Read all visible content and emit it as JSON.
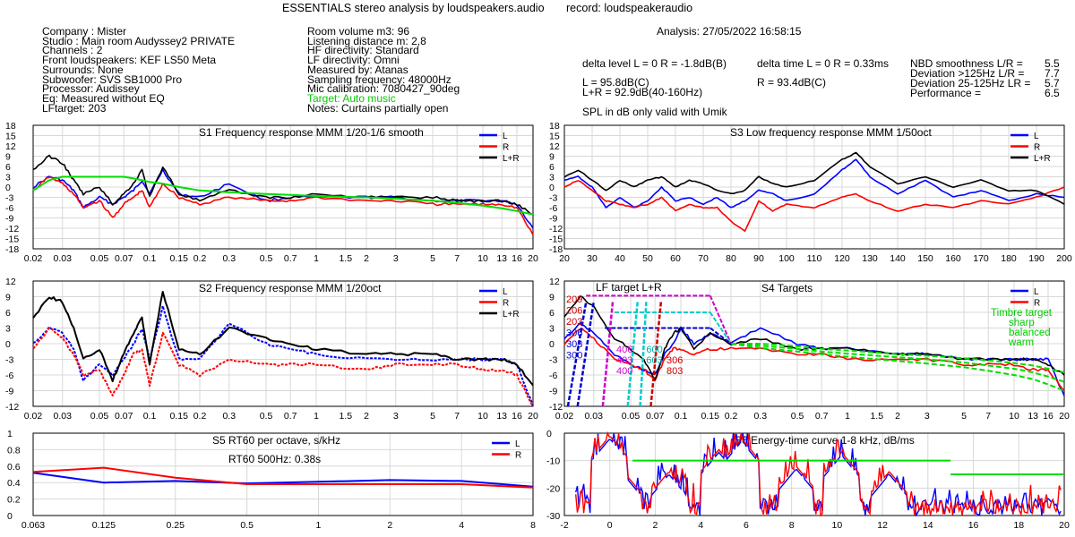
{
  "header": {
    "title": "ESSENTIALS stereo analysis by loudspeakers.audio",
    "record": "record: loudspeakeraudio",
    "analysis": "Analysis: 27/05/2022 16:58:15"
  },
  "info_left": [
    "Company : Mister",
    "Studio : Main room Audyssey2 PRIVATE",
    "Channels : 2",
    "Front loudspeakers: KEF LS50 Meta",
    "Surrounds: None",
    "Subwoofer: SVS SB1000 Pro",
    "Processor: Audissey",
    "Eq: Measured without EQ",
    "LFtarget: 203"
  ],
  "info_mid": [
    "Room volume m3: 96",
    "Listening distance m: 2,8",
    "HF directivity: Standard",
    "LF directivity: Omni",
    "Measured by: Atanas",
    "Sampling frequency: 48000Hz",
    "Mic calibration: 7080427_90deg",
    "Target: Auto music",
    "Notes: Curtains partially open"
  ],
  "stats": {
    "delta_level": "delta level L = 0  R = -1.8dB(B)",
    "delta_time": "delta time  L = 0  R = 0.33ms",
    "spl_l": "L =     95.8dB(C)",
    "spl_lr": "L+R = 92.9dB(40-160Hz)",
    "spl_r": "R =     93.4dB(C)",
    "spl_note": "SPL in dB only valid with Umik",
    "nbd_label": "NBD smoothness L/R =",
    "nbd_value": "5.5",
    "dev125_label": "Deviation >125Hz L/R =",
    "dev125_value": "7.7",
    "dev25_label": "Deviation 25-125Hz LR =",
    "dev25_value": "5.7",
    "perf_label": "Performance =",
    "perf_value": "6.5"
  },
  "colors": {
    "L": "#0000ff",
    "R": "#ff0000",
    "LR": "#000000",
    "target": "#00dd00"
  },
  "chart_data": [
    {
      "id": "S1",
      "type": "line",
      "title": "S1  Frequency response MMM 1/20-1/6 smooth",
      "x_scale": "log",
      "xlim": [
        0.02,
        20
      ],
      "ylim": [
        -18,
        18
      ],
      "grid": true,
      "xticks": [
        "0.02",
        "0.03",
        "0.05",
        "0.07",
        "0.1",
        "0.15",
        "0.2",
        "0.3",
        "0.5",
        "0.7",
        "1",
        "1.5",
        "2",
        "3",
        "5",
        "7",
        "10",
        "13",
        "16",
        "20"
      ],
      "yticks": [
        "18",
        "15",
        "12",
        "9",
        "6",
        "3",
        "0",
        "-3",
        "-6",
        "-9",
        "-12",
        "-15",
        "-18"
      ],
      "legend": [
        "L",
        "R",
        "L+R"
      ],
      "legend_position": "top-right",
      "x": [
        0.02,
        0.025,
        0.03,
        0.035,
        0.04,
        0.05,
        0.06,
        0.07,
        0.08,
        0.09,
        0.1,
        0.12,
        0.15,
        0.2,
        0.3,
        0.5,
        0.7,
        1,
        2,
        3,
        5,
        7,
        10,
        13,
        16,
        20
      ],
      "series": [
        {
          "name": "L",
          "values": [
            0,
            3,
            2,
            -1,
            -6,
            -3,
            -5,
            -3,
            -1,
            2,
            -2,
            5,
            -2,
            -3,
            1,
            -4,
            -3,
            -3,
            -3,
            -3,
            -4,
            -4,
            -4,
            -4,
            -5,
            -12
          ]
        },
        {
          "name": "R",
          "values": [
            -1,
            3,
            1,
            -2,
            -6,
            -4,
            -9,
            -5,
            -3,
            -1,
            -6,
            1,
            -3,
            -5,
            -3,
            -4,
            -4,
            -3,
            -4,
            -4,
            -5,
            -5,
            -5,
            -5,
            -6,
            -14
          ]
        },
        {
          "name": "L+R",
          "values": [
            5,
            9,
            7,
            2,
            -2,
            0,
            -5,
            -2,
            1,
            5,
            -3,
            6,
            -2,
            -4,
            -1,
            -3,
            -3,
            -2,
            -3,
            -3,
            -3,
            -4,
            -4,
            -4,
            -5,
            -8
          ]
        },
        {
          "name": "target",
          "values": [
            -1,
            2,
            3,
            3,
            3,
            3,
            3,
            3,
            2.5,
            2,
            1.5,
            1,
            0,
            -1,
            -1.5,
            -2,
            -2.3,
            -2.6,
            -3,
            -3.4,
            -4,
            -4.6,
            -5.4,
            -6.2,
            -7,
            -8
          ]
        }
      ]
    },
    {
      "id": "S2",
      "type": "line",
      "title": "S2  Frequency response MMM 1/20oct",
      "x_scale": "log",
      "xlim": [
        0.02,
        20
      ],
      "ylim": [
        -12,
        12
      ],
      "grid": true,
      "xticks": [
        "0.02",
        "0.03",
        "0.05",
        "0.07",
        "0.1",
        "0.15",
        "0.2",
        "0.3",
        "0.5",
        "0.7",
        "1",
        "1.5",
        "2",
        "3",
        "5",
        "7",
        "10",
        "13",
        "16",
        "20"
      ],
      "yticks": [
        "12",
        "9",
        "6",
        "3",
        "0",
        "-3",
        "-6",
        "-9",
        "-12"
      ],
      "legend": [
        "L",
        "R",
        "L+R"
      ],
      "legend_position": "top-right",
      "x": [
        0.02,
        0.025,
        0.03,
        0.035,
        0.04,
        0.05,
        0.06,
        0.07,
        0.08,
        0.09,
        0.1,
        0.12,
        0.15,
        0.2,
        0.3,
        0.5,
        0.7,
        1,
        2,
        3,
        5,
        7,
        10,
        13,
        16,
        20
      ],
      "series": [
        {
          "name": "L",
          "values": [
            0,
            3,
            2,
            -1,
            -7,
            -4,
            -6,
            -3,
            0,
            3,
            -3,
            7,
            -3,
            -3,
            4,
            0,
            -1,
            -2,
            -3,
            -3,
            -3,
            -3,
            -3,
            -3,
            -4,
            -12
          ]
        },
        {
          "name": "R",
          "values": [
            -1,
            3,
            1,
            -2,
            -6,
            -5,
            -10,
            -6,
            -2,
            -1,
            -8,
            2,
            -4,
            -6,
            -3,
            -4,
            -4,
            -4,
            -5,
            -4,
            -4,
            -4,
            -5,
            -5,
            -6,
            -12
          ]
        },
        {
          "name": "L+R",
          "values": [
            5,
            9,
            8,
            3,
            -3,
            -1,
            -7,
            -2,
            2,
            5,
            -4,
            10,
            -1,
            -2,
            3,
            1,
            0,
            -1,
            -2,
            -2,
            -2,
            -3,
            -3,
            -3,
            -4,
            -8
          ]
        }
      ]
    },
    {
      "id": "S3",
      "type": "line",
      "title": "S3  Low frequency response MMM 1/50oct",
      "xlim": [
        20,
        200
      ],
      "ylim": [
        -18,
        18
      ],
      "grid": true,
      "xticks": [
        "20",
        "30",
        "40",
        "50",
        "60",
        "70",
        "80",
        "90",
        "100",
        "110",
        "120",
        "130",
        "140",
        "150",
        "160",
        "170",
        "180",
        "190",
        "200"
      ],
      "yticks": [
        "18",
        "15",
        "12",
        "9",
        "6",
        "3",
        "0",
        "-3",
        "-6",
        "-9",
        "-12",
        "-15",
        "-18"
      ],
      "legend": [
        "L",
        "R",
        "L+R"
      ],
      "legend_position": "top-right",
      "x": [
        20,
        25,
        30,
        35,
        40,
        45,
        50,
        55,
        60,
        65,
        70,
        75,
        80,
        85,
        90,
        95,
        100,
        110,
        120,
        125,
        130,
        140,
        150,
        160,
        170,
        180,
        190,
        200
      ],
      "series": [
        {
          "name": "L",
          "values": [
            2,
            3,
            0,
            -6,
            -3,
            -6,
            -4,
            0,
            -4,
            -3,
            -5,
            -3,
            -6,
            -4,
            -1,
            -2,
            -4,
            -2,
            5,
            8,
            3,
            -2,
            2,
            -3,
            -1,
            -4,
            -2,
            -3
          ]
        },
        {
          "name": "R",
          "values": [
            0,
            2,
            -1,
            -4,
            -5,
            -6,
            -5,
            -3,
            -7,
            -5,
            -6,
            -6,
            -10,
            -13,
            -4,
            -7,
            -5,
            -6,
            -3,
            -2,
            -4,
            -7,
            -5,
            -6,
            -4,
            -5,
            -3,
            0
          ]
        },
        {
          "name": "L+R",
          "values": [
            3,
            5,
            2,
            -1,
            2,
            0,
            2,
            3,
            0,
            2,
            1,
            -1,
            -2,
            -1,
            3,
            1,
            0,
            2,
            8,
            10,
            6,
            1,
            3,
            0,
            2,
            -1,
            -1,
            -5
          ]
        }
      ]
    },
    {
      "id": "S4",
      "type": "line",
      "title": "S4 Targets",
      "subtitle": "LF target L+R",
      "x_scale": "log",
      "xlim": [
        0.02,
        20
      ],
      "ylim": [
        -12,
        12
      ],
      "grid": true,
      "xticks": [
        "0.02",
        "0.03",
        "0.05",
        "0.07",
        "0.1",
        "0.15",
        "0.2",
        "0.3",
        "0.5",
        "0.7",
        "1",
        "1.5",
        "2",
        "3",
        "5",
        "7",
        "10",
        "13",
        "16",
        "20"
      ],
      "yticks": [
        "12",
        "9",
        "6",
        "3",
        "0",
        "-3",
        "-6",
        "-9",
        "-12"
      ],
      "legend": [
        "L",
        "R"
      ],
      "legend_position": "top-right",
      "timbre_labels": [
        "Timbre target",
        "sharp",
        "balanced",
        "warm"
      ],
      "lf_labels_left": [
        "209",
        "206",
        "203",
        "306",
        "303",
        "300"
      ],
      "lf_labels_mid": [
        "406",
        "403",
        "400"
      ],
      "lf_labels_mid2": [
        "600",
        "603"
      ],
      "lf_labels_right": [
        "306",
        "803"
      ],
      "x": [
        0.02,
        0.025,
        0.03,
        0.04,
        0.05,
        0.06,
        0.07,
        0.08,
        0.09,
        0.1,
        0.12,
        0.15,
        0.2,
        0.3,
        0.5,
        0.7,
        1,
        2,
        3,
        5,
        7,
        10,
        13,
        16,
        20
      ],
      "series": [
        {
          "name": "L",
          "values": [
            1,
            4,
            2,
            -2,
            -4,
            -5,
            -6,
            -2,
            0,
            3,
            0,
            2,
            0,
            3,
            0,
            -1,
            -1,
            -2,
            -2,
            -3,
            -3,
            -3,
            -3,
            -3,
            -10
          ]
        },
        {
          "name": "R",
          "values": [
            0,
            3,
            1,
            -3,
            -4,
            -5,
            -7,
            -3,
            -1,
            -1,
            -2,
            -1,
            -1,
            -1,
            -2,
            -2,
            -3,
            -3,
            -3,
            -4,
            -4,
            -4,
            -5,
            -5,
            -9
          ]
        },
        {
          "name": "L+R",
          "values": [
            5,
            9,
            7,
            1,
            -1,
            -3,
            -7,
            -1,
            2,
            3,
            -1,
            2,
            0,
            1,
            -1,
            -1,
            -1,
            -2,
            -2,
            -3,
            -3,
            -3,
            -3,
            -4,
            -6
          ]
        },
        {
          "name": "target-sharp",
          "values": [
            null,
            null,
            null,
            null,
            null,
            null,
            null,
            null,
            null,
            null,
            null,
            null,
            0,
            0,
            -0.5,
            -1,
            -1.3,
            -2,
            -2.3,
            -2.8,
            -3.2,
            -3.7,
            -4.2,
            -4.8,
            -5.5
          ]
        },
        {
          "name": "target-balanced",
          "values": [
            null,
            null,
            null,
            null,
            null,
            null,
            null,
            null,
            null,
            null,
            null,
            null,
            0,
            -0.4,
            -1,
            -1.5,
            -1.9,
            -2.6,
            -3,
            -3.6,
            -4.2,
            -4.8,
            -5.5,
            -6.3,
            -7.3
          ]
        },
        {
          "name": "target-warm",
          "values": [
            null,
            null,
            null,
            null,
            null,
            null,
            null,
            null,
            null,
            null,
            null,
            null,
            0,
            -0.8,
            -1.5,
            -2,
            -2.5,
            -3.3,
            -3.8,
            -4.5,
            -5.2,
            -6,
            -6.8,
            -7.8,
            -9
          ]
        }
      ]
    },
    {
      "id": "S5",
      "type": "line",
      "title": "S5  RT60 per octave, s/kHz",
      "annotation": "RT60 500Hz: 0.38s",
      "xlim": [
        0.063,
        8
      ],
      "ylim": [
        0,
        1
      ],
      "grid": true,
      "xticks": [
        "0.063",
        "0.125",
        "0.25",
        "0.5",
        "1",
        "2",
        "4",
        "8"
      ],
      "yticks": [
        "1",
        "0.8",
        "0.6",
        "0.4",
        "0.2",
        "0"
      ],
      "legend": [
        "L",
        "R"
      ],
      "legend_position": "top-right",
      "x": [
        0.063,
        0.125,
        0.25,
        0.5,
        1,
        2,
        4,
        8
      ],
      "series": [
        {
          "name": "L",
          "values": [
            0.52,
            0.4,
            0.42,
            0.39,
            0.41,
            0.43,
            0.42,
            0.35
          ]
        },
        {
          "name": "R",
          "values": [
            0.53,
            0.58,
            0.46,
            0.38,
            0.38,
            0.38,
            0.38,
            0.34
          ]
        }
      ]
    },
    {
      "id": "S6",
      "type": "line",
      "title": "S6  Energy-time curve 1-8 kHz, dB/ms",
      "xlim": [
        -2,
        20
      ],
      "ylim": [
        -30,
        0
      ],
      "grid": true,
      "xticks": [
        "-2",
        "0",
        "2",
        "4",
        "6",
        "8",
        "10",
        "12",
        "14",
        "16",
        "18",
        "20"
      ],
      "yticks": [
        "0",
        "-10",
        "-20",
        "-30"
      ],
      "target_segments": [
        {
          "x": [
            1,
            15
          ],
          "y": -10
        },
        {
          "x": [
            15,
            20
          ],
          "y": -15
        }
      ]
    }
  ]
}
